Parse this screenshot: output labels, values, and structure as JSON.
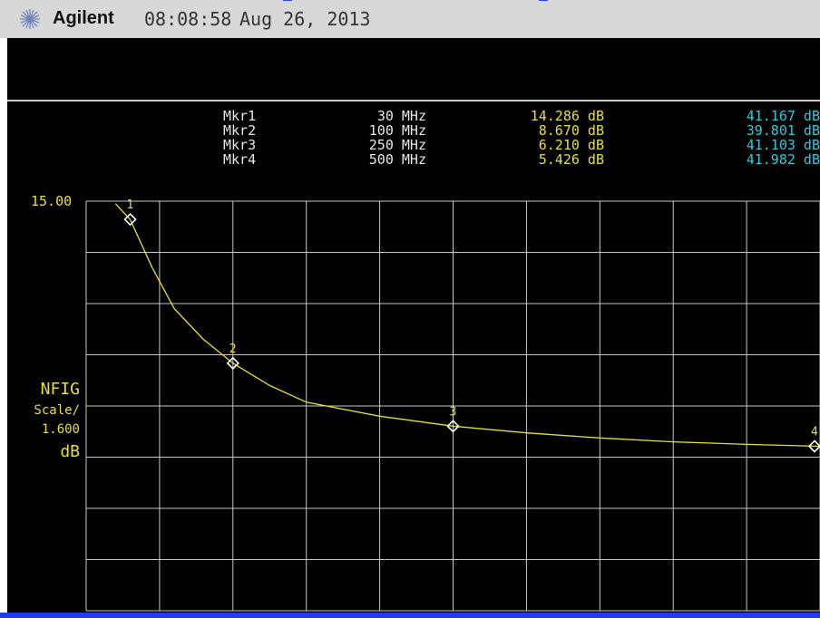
{
  "header": {
    "brand": "Agilent",
    "time": "08:08:58",
    "date": "Aug 26, 2013"
  },
  "markers": [
    {
      "name": "Mkr1",
      "freq": "30 MHz",
      "nf": "14.286 dB",
      "gain": "41.167 dB"
    },
    {
      "name": "Mkr2",
      "freq": "100 MHz",
      "nf": "8.670 dB",
      "gain": "39.801 dB"
    },
    {
      "name": "Mkr3",
      "freq": "250 MHz",
      "nf": "6.210 dB",
      "gain": "41.103 dB"
    },
    {
      "name": "Mkr4",
      "freq": "500 MHz",
      "nf": "5.426 dB",
      "gain": "41.982 dB"
    }
  ],
  "y_axis": {
    "ref": "15.00",
    "label": "NFIG",
    "scale_label": "Scale/",
    "scale_value": "1.600",
    "unit": "dB"
  },
  "colors": {
    "trace": "#e6e030",
    "gain_text": "#33c9d9",
    "grid": "#c8c8c8",
    "background": "#000000"
  },
  "chart_data": {
    "type": "line",
    "xlim": [
      0,
      500
    ],
    "ylim": [
      -1.0,
      15.0
    ],
    "points": [
      {
        "x": 20,
        "y": 14.9
      },
      {
        "x": 30,
        "y": 14.286
      },
      {
        "x": 45,
        "y": 12.4
      },
      {
        "x": 60,
        "y": 10.8
      },
      {
        "x": 80,
        "y": 9.6
      },
      {
        "x": 100,
        "y": 8.67
      },
      {
        "x": 125,
        "y": 7.8
      },
      {
        "x": 150,
        "y": 7.15
      },
      {
        "x": 200,
        "y": 6.6
      },
      {
        "x": 250,
        "y": 6.21
      },
      {
        "x": 300,
        "y": 5.95
      },
      {
        "x": 350,
        "y": 5.75
      },
      {
        "x": 400,
        "y": 5.6
      },
      {
        "x": 450,
        "y": 5.5
      },
      {
        "x": 500,
        "y": 5.426
      }
    ],
    "markers": [
      {
        "id": "1",
        "x": 30,
        "y": 14.286
      },
      {
        "id": "2",
        "x": 100,
        "y": 8.67
      },
      {
        "id": "3",
        "x": 250,
        "y": 6.21
      },
      {
        "id": "4",
        "x": 500,
        "y": 5.426
      }
    ],
    "grid": true
  }
}
